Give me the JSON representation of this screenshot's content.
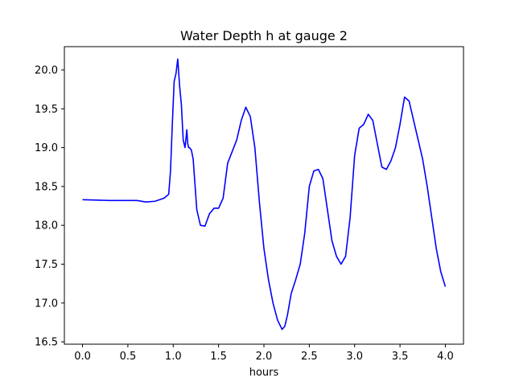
{
  "chart_data": {
    "type": "line",
    "title": "Water Depth h at gauge 2",
    "xlabel": "hours",
    "ylabel": "",
    "xlim": [
      -0.2,
      4.2
    ],
    "ylim": [
      16.47,
      20.3
    ],
    "xticks": [
      0.0,
      0.5,
      1.0,
      1.5,
      2.0,
      2.5,
      3.0,
      3.5,
      4.0
    ],
    "xtick_labels": [
      "0.0",
      "0.5",
      "1.0",
      "1.5",
      "2.0",
      "2.5",
      "3.0",
      "3.5",
      "4.0"
    ],
    "yticks": [
      16.5,
      17.0,
      17.5,
      18.0,
      18.5,
      19.0,
      19.5,
      20.0
    ],
    "ytick_labels": [
      "16.5",
      "17.0",
      "17.5",
      "18.0",
      "18.5",
      "19.0",
      "19.5",
      "20.0"
    ],
    "grid": false,
    "series": [
      {
        "color": "#0000ff",
        "x": [
          0.0,
          0.3,
          0.6,
          0.7,
          0.8,
          0.9,
          0.95,
          0.97,
          0.99,
          1.01,
          1.03,
          1.05,
          1.07,
          1.09,
          1.11,
          1.13,
          1.15,
          1.16,
          1.17,
          1.18,
          1.2,
          1.22,
          1.26,
          1.3,
          1.35,
          1.4,
          1.45,
          1.5,
          1.55,
          1.6,
          1.65,
          1.7,
          1.75,
          1.8,
          1.85,
          1.9,
          1.95,
          2.0,
          2.05,
          2.1,
          2.15,
          2.2,
          2.23,
          2.26,
          2.3,
          2.35,
          2.4,
          2.45,
          2.5,
          2.55,
          2.6,
          2.65,
          2.7,
          2.75,
          2.8,
          2.85,
          2.9,
          2.95,
          3.0,
          3.05,
          3.1,
          3.15,
          3.2,
          3.25,
          3.3,
          3.35,
          3.4,
          3.45,
          3.5,
          3.55,
          3.6,
          3.65,
          3.7,
          3.75,
          3.8,
          3.85,
          3.9,
          3.95,
          4.0
        ],
        "y": [
          18.33,
          18.32,
          18.32,
          18.3,
          18.31,
          18.35,
          18.4,
          18.7,
          19.3,
          19.85,
          19.95,
          20.14,
          19.8,
          19.55,
          19.1,
          19.0,
          19.23,
          19.05,
          19.0,
          19.0,
          18.97,
          18.85,
          18.2,
          18.0,
          17.99,
          18.15,
          18.22,
          18.22,
          18.35,
          18.8,
          18.95,
          19.1,
          19.35,
          19.52,
          19.4,
          19.0,
          18.3,
          17.7,
          17.3,
          17.0,
          16.78,
          16.66,
          16.7,
          16.85,
          17.12,
          17.3,
          17.5,
          17.9,
          18.5,
          18.7,
          18.72,
          18.6,
          18.2,
          17.8,
          17.6,
          17.5,
          17.6,
          18.1,
          18.9,
          19.25,
          19.3,
          19.43,
          19.35,
          19.05,
          18.75,
          18.72,
          18.83,
          19.0,
          19.3,
          19.65,
          19.6,
          19.35,
          19.1,
          18.85,
          18.5,
          18.1,
          17.7,
          17.4,
          17.21
        ]
      }
    ]
  }
}
